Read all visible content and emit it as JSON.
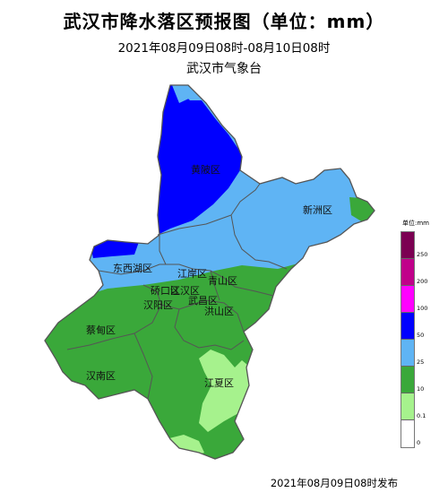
{
  "title": "武汉市降水落区预报图（单位：mm）",
  "subtitle": "2021年08月09日08时-08月10日08时",
  "agency": "武汉市气象台",
  "footer": "2021年08月09日08时发布",
  "legend": {
    "title": "单位:mm",
    "bins": [
      {
        "label": "250",
        "color": "#7b0052"
      },
      {
        "label": "200",
        "color": "#c0008a"
      },
      {
        "label": "100",
        "color": "#ff00ff"
      },
      {
        "label": "50",
        "color": "#0000ff"
      },
      {
        "label": "25",
        "color": "#5fb4f4"
      },
      {
        "label": "10",
        "color": "#3aa83a"
      },
      {
        "label": "0.1",
        "color": "#a6f28d"
      },
      {
        "label": "0",
        "color": "#ffffff"
      }
    ]
  },
  "districts": {
    "huangpi": "黄陂区",
    "xinzhou": "新洲区",
    "dongxihu": "东西湖区",
    "jiangan": "江岸区",
    "qingshan": "青山区",
    "qiaokou": "硚口区",
    "jianghan": "江汉区",
    "hanyang": "汉阳区",
    "wuchang": "武昌区",
    "hongshan": "洪山区",
    "caidian": "蔡甸区",
    "hannan": "汉南区",
    "jiangxia": "江夏区"
  }
}
